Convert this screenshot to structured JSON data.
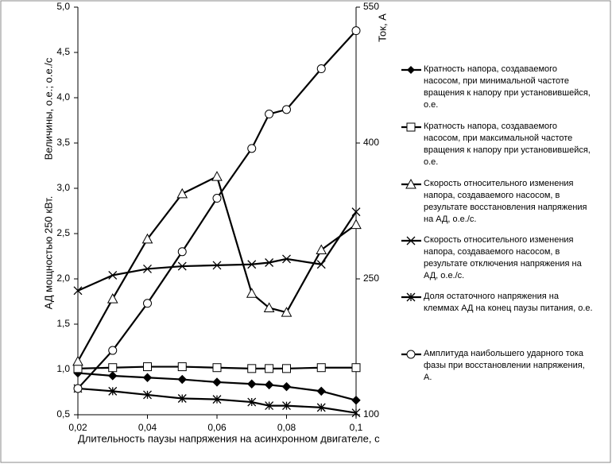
{
  "chart_data": {
    "type": "line",
    "x_label": "Длительность паузы напряжения на асинхронном двигателе, с",
    "y_label": [
      "Величины, о.е.; о.е./с",
      "АД мощностью 250 кВт."
    ],
    "y2_label": "Ток, А",
    "x": [
      0.02,
      0.03,
      0.04,
      0.05,
      0.06,
      0.07,
      0.075,
      0.08,
      0.09,
      0.1
    ],
    "xlim": [
      0.02,
      0.1
    ],
    "xticks": [
      {
        "value": 0.02,
        "label": "0,02"
      },
      {
        "value": 0.04,
        "label": "0,04"
      },
      {
        "value": 0.06,
        "label": "0,06"
      },
      {
        "value": 0.08,
        "label": "0,08"
      },
      {
        "value": 0.1,
        "label": "0,1"
      }
    ],
    "ylim": [
      0.5,
      5.0
    ],
    "yticks": [
      {
        "value": 0.5,
        "label": "0,5"
      },
      {
        "value": 1.0,
        "label": "1,0"
      },
      {
        "value": 1.5,
        "label": "1,5"
      },
      {
        "value": 2.0,
        "label": "2,0"
      },
      {
        "value": 2.5,
        "label": "2,5"
      },
      {
        "value": 3.0,
        "label": "3,0"
      },
      {
        "value": 3.5,
        "label": "3,5"
      },
      {
        "value": 4.0,
        "label": "4,0"
      },
      {
        "value": 4.5,
        "label": "4,5"
      },
      {
        "value": 5.0,
        "label": "5,0"
      }
    ],
    "y2lim": [
      100,
      550
    ],
    "y2ticks": [
      100,
      250,
      400,
      550
    ],
    "grid": false,
    "legend": "right",
    "series": [
      {
        "name": "Кратность напора, создаваемого насосом, при минимальной частоте вращения к напору при установившейся, о.е.",
        "color": "#000000",
        "marker": "diamond",
        "values": [
          0.96,
          0.93,
          0.91,
          0.89,
          0.86,
          0.84,
          0.83,
          0.81,
          0.76,
          0.66
        ]
      },
      {
        "name": "Кратность напора, создаваемого насосом, при максимальной частоте вращения к напору при установившейся, о.е.",
        "color": "#000000",
        "marker": "square",
        "values": [
          1.01,
          1.02,
          1.03,
          1.03,
          1.02,
          1.01,
          1.01,
          1.01,
          1.02,
          1.02
        ]
      },
      {
        "name": "Скорость относительного изменения напора, создаваемого насосом, в результате восстановления напряжения на АД, о.е./с.",
        "color": "#000000",
        "marker": "triangle",
        "values": [
          1.09,
          1.78,
          2.44,
          2.94,
          3.13,
          1.84,
          1.68,
          1.63,
          2.32,
          2.6
        ]
      },
      {
        "name": "Скорость относительного изменения напора, создаваемого насосом, в результате отключения напряжения на АД, о.е./с.",
        "color": "#000000",
        "marker": "x",
        "values": [
          1.87,
          2.04,
          2.11,
          2.14,
          2.15,
          2.16,
          2.18,
          2.22,
          2.16,
          2.74
        ]
      },
      {
        "name": "Доля остаточного напряжения на клеммах АД на конец паузы питания, о.е.",
        "color": "#000000",
        "marker": "asterisk",
        "values": [
          0.79,
          0.76,
          0.72,
          0.68,
          0.67,
          0.64,
          0.6,
          0.6,
          0.58,
          0.52
        ]
      },
      {
        "name": "Амплитуда наибольшего ударного тока фазы при восстановлении напряжения, А.",
        "color": "#000000",
        "marker": "circle",
        "axis": "y2",
        "values": [
          129,
          171,
          223,
          280,
          339,
          394,
          432,
          437,
          482,
          524
        ]
      }
    ]
  }
}
